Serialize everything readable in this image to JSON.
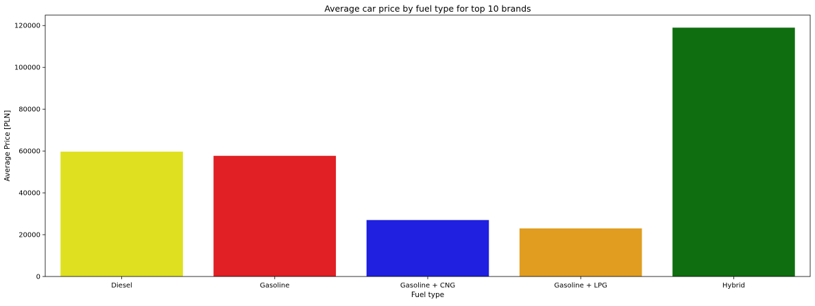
{
  "chart_data": {
    "type": "bar",
    "title": "Average car price by fuel type for top 10 brands",
    "xlabel": "Fuel type",
    "ylabel": "Average Price [PLN]",
    "categories": [
      "Diesel",
      "Gasoline",
      "Gasoline + CNG",
      "Gasoline + LPG",
      "Hybrid"
    ],
    "values": [
      59700,
      57700,
      27000,
      23000,
      119000
    ],
    "colors": [
      "#dfe01f",
      "#e02024",
      "#1f20e0",
      "#e09d20",
      "#0f6e0f"
    ],
    "ylim": [
      0,
      125000
    ],
    "yticks": [
      0,
      20000,
      40000,
      60000,
      80000,
      100000,
      120000
    ],
    "ytick_labels": [
      "0",
      "20000",
      "40000",
      "60000",
      "80000",
      "100000",
      "120000"
    ],
    "grid": false,
    "legend": "none"
  }
}
